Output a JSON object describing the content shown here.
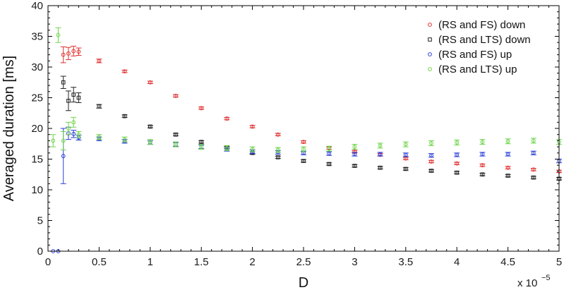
{
  "chart_data": {
    "type": "scatter",
    "title": "",
    "xlabel": "D",
    "ylabel": "Averaged duration [ms]",
    "x_exponent_label": "x 10",
    "x_exponent_power": "−5",
    "xlim": [
      0,
      5
    ],
    "ylim": [
      0,
      40
    ],
    "xticks": [
      "0",
      "0.5",
      "1",
      "1.5",
      "2",
      "2.5",
      "3",
      "3.5",
      "4",
      "4.5",
      "5"
    ],
    "yticks": [
      "0",
      "5",
      "10",
      "15",
      "20",
      "25",
      "30",
      "35",
      "40"
    ],
    "grid": false,
    "legend_position": "top-right",
    "series": [
      {
        "name": "(RS and FS) down",
        "color": "#e03030",
        "marker": "circle",
        "x": [
          0.15,
          0.2,
          0.25,
          0.3,
          0.5,
          0.75,
          1.0,
          1.25,
          1.5,
          1.75,
          2.0,
          2.25,
          2.5,
          2.75,
          3.0,
          3.25,
          3.5,
          3.75,
          4.0,
          4.25,
          4.5,
          4.75,
          5.0
        ],
        "y": [
          32.0,
          32.2,
          32.6,
          32.5,
          31.0,
          29.3,
          27.5,
          25.3,
          23.3,
          21.6,
          20.3,
          19.0,
          17.8,
          16.8,
          16.2,
          15.7,
          15.1,
          14.6,
          14.3,
          14.0,
          13.6,
          13.3,
          13.0
        ],
        "err": [
          1.3,
          1.0,
          0.8,
          0.6,
          0.3,
          0.2,
          0.2,
          0.2,
          0.2,
          0.2,
          0.2,
          0.2,
          0.2,
          0.2,
          0.2,
          0.2,
          0.2,
          0.2,
          0.2,
          0.2,
          0.2,
          0.2,
          0.2
        ]
      },
      {
        "name": "(RS and LTS) down",
        "color": "#222222",
        "marker": "square",
        "x": [
          0.15,
          0.2,
          0.25,
          0.3,
          0.5,
          0.75,
          1.0,
          1.25,
          1.5,
          1.75,
          2.0,
          2.25,
          2.5,
          2.75,
          3.0,
          3.25,
          3.5,
          3.75,
          4.0,
          4.25,
          4.5,
          4.75,
          5.0
        ],
        "y": [
          27.5,
          24.5,
          25.5,
          25.0,
          23.6,
          22.0,
          20.3,
          19.0,
          17.8,
          16.9,
          16.0,
          15.3,
          14.7,
          14.2,
          13.9,
          13.6,
          13.4,
          13.1,
          12.8,
          12.5,
          12.3,
          12.0,
          11.8
        ],
        "err": [
          1.0,
          1.6,
          1.2,
          0.8,
          0.3,
          0.2,
          0.2,
          0.2,
          0.2,
          0.2,
          0.2,
          0.2,
          0.2,
          0.2,
          0.2,
          0.2,
          0.2,
          0.2,
          0.2,
          0.2,
          0.2,
          0.2,
          0.2
        ]
      },
      {
        "name": "(RS and FS) up",
        "color": "#2b3fd6",
        "marker": "circle",
        "x": [
          0.05,
          0.1,
          0.15,
          0.2,
          0.25,
          0.3,
          0.5,
          0.75,
          1.0,
          1.25,
          1.5,
          1.75,
          2.0,
          2.25,
          2.5,
          2.75,
          3.0,
          3.25,
          3.5,
          3.75,
          4.0,
          4.25,
          4.5,
          4.75,
          5.0
        ],
        "y": [
          0.0,
          0.0,
          15.5,
          19.2,
          19.1,
          18.5,
          18.3,
          17.9,
          17.7,
          17.4,
          17.0,
          16.6,
          16.2,
          16.1,
          16.0,
          15.9,
          15.8,
          15.8,
          15.7,
          15.6,
          15.7,
          15.8,
          15.8,
          16.0,
          14.7
        ],
        "err": [
          0,
          0,
          4.5,
          1.0,
          0.6,
          0.4,
          0.3,
          0.3,
          0.3,
          0.3,
          0.3,
          0.3,
          0.3,
          0.3,
          0.3,
          0.3,
          0.3,
          0.3,
          0.3,
          0.3,
          0.3,
          0.3,
          0.3,
          0.3,
          0.3
        ]
      },
      {
        "name": "(RS and LTS) up",
        "color": "#6fd44a",
        "marker": "circle",
        "x": [
          0.05,
          0.1,
          0.15,
          0.2,
          0.25,
          0.3,
          0.5,
          0.75,
          1.0,
          1.25,
          1.5,
          1.75,
          2.0,
          2.25,
          2.5,
          2.75,
          3.0,
          3.25,
          3.5,
          3.75,
          4.0,
          4.25,
          4.5,
          4.75,
          5.0
        ],
        "y": [
          18.0,
          35.2,
          18.0,
          20.0,
          21.0,
          19.0,
          18.6,
          18.2,
          17.8,
          17.4,
          17.0,
          16.8,
          16.6,
          16.5,
          16.6,
          16.7,
          17.0,
          17.2,
          17.4,
          17.6,
          17.7,
          17.8,
          17.9,
          18.0,
          17.8
        ],
        "err": [
          1.0,
          1.2,
          1.5,
          1.0,
          0.8,
          0.5,
          0.4,
          0.4,
          0.4,
          0.4,
          0.4,
          0.4,
          0.4,
          0.4,
          0.4,
          0.4,
          0.4,
          0.4,
          0.4,
          0.4,
          0.4,
          0.4,
          0.4,
          0.4,
          0.4
        ]
      }
    ]
  }
}
